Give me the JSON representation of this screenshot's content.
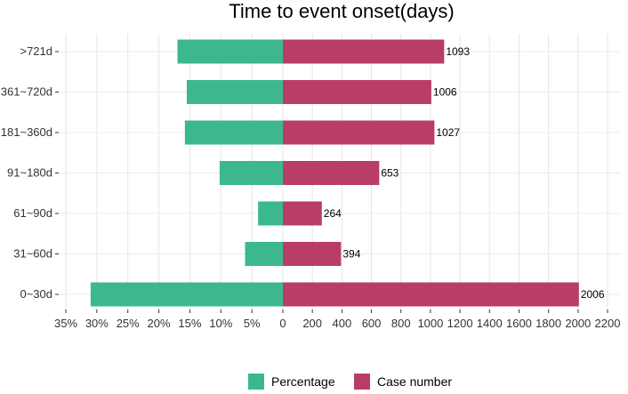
{
  "chart_data": {
    "type": "bar",
    "orientation": "horizontal-diverging",
    "title": "Time to event onset(days)",
    "categories": [
      ">721d",
      "361~720d",
      "181~360d",
      "91~180d",
      "61~90d",
      "31~60d",
      "0~30d"
    ],
    "series": [
      {
        "name": "Percentage",
        "color": "#3cb88e",
        "values": [
          17.0,
          15.5,
          15.8,
          10.2,
          4.0,
          6.1,
          31.0
        ],
        "unit": "%"
      },
      {
        "name": "Case number",
        "color": "#b83d68",
        "values": [
          1093,
          1006,
          1027,
          653,
          264,
          394,
          2006
        ]
      }
    ],
    "left_axis": {
      "ticks": [
        "35%",
        "30%",
        "25%",
        "20%",
        "15%",
        "10%",
        "5%",
        "0"
      ],
      "range": [
        0,
        35
      ]
    },
    "right_axis": {
      "ticks": [
        "200",
        "400",
        "600",
        "800",
        "1000",
        "1200",
        "1400",
        "1600",
        "1800",
        "2000",
        "2200"
      ],
      "range": [
        0,
        2200
      ]
    },
    "grid": true,
    "legend_position": "bottom"
  }
}
